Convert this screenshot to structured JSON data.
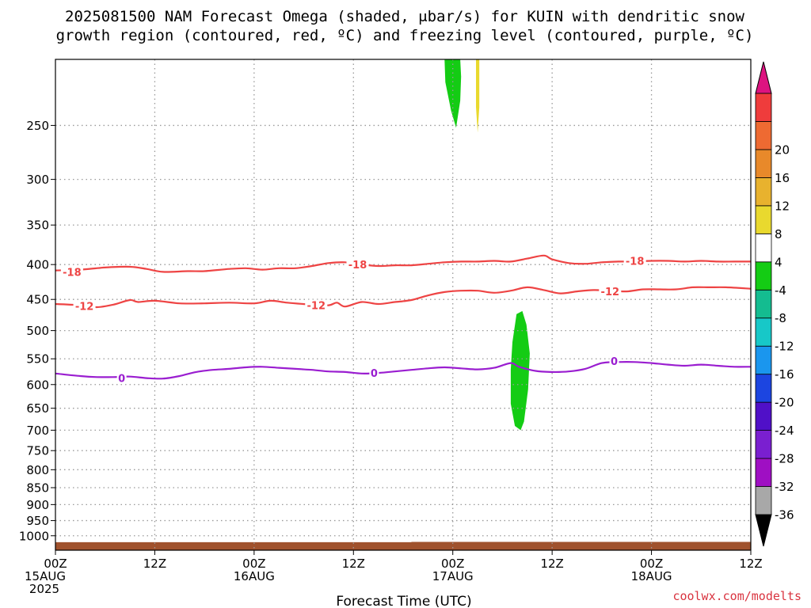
{
  "title": {
    "line1": "2025081500 NAM Forecast Omega (shaded, μbar/s) for KUIN with dendritic snow",
    "line2": "growth region (contoured, red, ºC) and freezing level (contoured, purple, ºC)"
  },
  "xlabel": "Forecast Time (UTC)",
  "credit": "coolwx.com/modelts",
  "chart_data": {
    "type": "time-height contour",
    "x_unit": "forecast hours from 2025081500",
    "xlim": [
      0,
      84
    ],
    "y_scale": "log-pressure, inverted",
    "ylim": [
      1050,
      200
    ],
    "y_ticks": [
      250,
      300,
      350,
      400,
      450,
      500,
      550,
      600,
      650,
      700,
      750,
      800,
      850,
      900,
      950,
      1000
    ],
    "x_ticks": [
      {
        "hour": 0,
        "line1": "00Z",
        "line2": "15AUG",
        "line3": "2025"
      },
      {
        "hour": 12,
        "line1": "12Z",
        "line2": "",
        "line3": ""
      },
      {
        "hour": 24,
        "line1": "00Z",
        "line2": "16AUG",
        "line3": ""
      },
      {
        "hour": 36,
        "line1": "12Z",
        "line2": "",
        "line3": ""
      },
      {
        "hour": 48,
        "line1": "00Z",
        "line2": "17AUG",
        "line3": ""
      },
      {
        "hour": 60,
        "line1": "12Z",
        "line2": "",
        "line3": ""
      },
      {
        "hour": 72,
        "line1": "00Z",
        "line2": "18AUG",
        "line3": ""
      },
      {
        "hour": 84,
        "line1": "12Z",
        "line2": "",
        "line3": ""
      }
    ],
    "ground_pressure": [
      [
        0,
        1022
      ],
      [
        43,
        1022
      ],
      [
        43,
        1021
      ],
      [
        84,
        1021
      ]
    ],
    "contours": [
      {
        "level": "-18",
        "color": "#ee4444",
        "label_positions": [
          [
            2,
            410
          ],
          [
            36.5,
            400
          ],
          [
            70,
            395
          ]
        ],
        "points": [
          [
            0,
            408
          ],
          [
            3,
            407
          ],
          [
            6,
            404
          ],
          [
            9,
            403
          ],
          [
            11,
            406
          ],
          [
            13,
            410
          ],
          [
            16,
            409
          ],
          [
            18,
            409
          ],
          [
            21,
            406
          ],
          [
            23,
            405
          ],
          [
            25,
            407
          ],
          [
            27,
            405
          ],
          [
            29,
            405
          ],
          [
            31,
            402
          ],
          [
            33,
            398
          ],
          [
            35,
            397
          ],
          [
            37,
            400
          ],
          [
            39,
            402
          ],
          [
            41,
            401
          ],
          [
            43,
            401
          ],
          [
            45,
            399
          ],
          [
            47,
            397
          ],
          [
            49,
            396
          ],
          [
            51,
            396
          ],
          [
            53,
            395
          ],
          [
            55,
            396
          ],
          [
            57,
            392
          ],
          [
            59,
            388
          ],
          [
            60,
            393
          ],
          [
            62,
            398
          ],
          [
            64,
            399
          ],
          [
            66,
            397
          ],
          [
            68,
            396
          ],
          [
            70,
            396
          ],
          [
            72,
            395
          ],
          [
            74,
            395
          ],
          [
            76,
            396
          ],
          [
            78,
            395
          ],
          [
            80,
            396
          ],
          [
            82,
            396
          ],
          [
            84,
            396
          ]
        ]
      },
      {
        "level": "-12",
        "color": "#ee4444",
        "label_positions": [
          [
            3.5,
            460
          ],
          [
            31.5,
            459
          ],
          [
            67,
            438
          ]
        ],
        "points": [
          [
            0,
            457
          ],
          [
            3,
            459
          ],
          [
            5,
            462
          ],
          [
            7,
            458
          ],
          [
            9,
            451
          ],
          [
            10,
            454
          ],
          [
            12,
            452
          ],
          [
            15,
            456
          ],
          [
            18,
            456
          ],
          [
            21,
            455
          ],
          [
            24,
            456
          ],
          [
            26,
            452
          ],
          [
            28,
            455
          ],
          [
            31,
            458
          ],
          [
            33,
            459
          ],
          [
            34,
            455
          ],
          [
            35,
            461
          ],
          [
            37,
            454
          ],
          [
            39,
            457
          ],
          [
            41,
            454
          ],
          [
            43,
            451
          ],
          [
            45,
            444
          ],
          [
            47,
            439
          ],
          [
            49,
            437
          ],
          [
            51,
            437
          ],
          [
            53,
            440
          ],
          [
            55,
            437
          ],
          [
            57,
            432
          ],
          [
            59,
            436
          ],
          [
            61,
            441
          ],
          [
            63,
            438
          ],
          [
            65,
            436
          ],
          [
            67,
            437
          ],
          [
            69,
            438
          ],
          [
            71,
            435
          ],
          [
            73,
            435
          ],
          [
            75,
            435
          ],
          [
            77,
            432
          ],
          [
            79,
            432
          ],
          [
            81,
            432
          ],
          [
            84,
            434
          ]
        ]
      },
      {
        "level": "0",
        "color": "#9a1ed0",
        "label_positions": [
          [
            8,
            587
          ],
          [
            38.5,
            577
          ],
          [
            67.5,
            554
          ]
        ],
        "points": [
          [
            0,
            578
          ],
          [
            3,
            583
          ],
          [
            5,
            585
          ],
          [
            7,
            585
          ],
          [
            9,
            584
          ],
          [
            11,
            587
          ],
          [
            13,
            588
          ],
          [
            15,
            583
          ],
          [
            17,
            575
          ],
          [
            19,
            571
          ],
          [
            21,
            569
          ],
          [
            23,
            566
          ],
          [
            25,
            565
          ],
          [
            27,
            567
          ],
          [
            29,
            569
          ],
          [
            31,
            571
          ],
          [
            33,
            574
          ],
          [
            35,
            575
          ],
          [
            37,
            578
          ],
          [
            39,
            577
          ],
          [
            41,
            574
          ],
          [
            43,
            571
          ],
          [
            45,
            568
          ],
          [
            47,
            566
          ],
          [
            49,
            568
          ],
          [
            51,
            570
          ],
          [
            53,
            567
          ],
          [
            55,
            558
          ],
          [
            56,
            565
          ],
          [
            58,
            573
          ],
          [
            60,
            575
          ],
          [
            62,
            574
          ],
          [
            64,
            569
          ],
          [
            66,
            558
          ],
          [
            68,
            556
          ],
          [
            70,
            556
          ],
          [
            72,
            558
          ],
          [
            74,
            561
          ],
          [
            76,
            563
          ],
          [
            78,
            561
          ],
          [
            80,
            563
          ],
          [
            82,
            565
          ],
          [
            84,
            565
          ]
        ]
      }
    ],
    "shaded_regions": [
      {
        "fill": "#14cc14",
        "polygon": [
          [
            47.5,
            200
          ],
          [
            48.9,
            200
          ],
          [
            49,
            212
          ],
          [
            48.9,
            230
          ],
          [
            48.4,
            252
          ],
          [
            47.8,
            238
          ],
          [
            47.1,
            216
          ],
          [
            47,
            200
          ]
        ]
      },
      {
        "fill": "#e9d92e",
        "polygon": [
          [
            50.8,
            200
          ],
          [
            51.2,
            200
          ],
          [
            51.2,
            235
          ],
          [
            51,
            256
          ],
          [
            50.8,
            235
          ]
        ]
      },
      {
        "fill": "#14cc14",
        "polygon": [
          [
            55.7,
            473
          ],
          [
            56.4,
            468
          ],
          [
            56.9,
            490
          ],
          [
            57.3,
            540
          ],
          [
            57.1,
            610
          ],
          [
            56.6,
            680
          ],
          [
            56.2,
            700
          ],
          [
            55.5,
            690
          ],
          [
            55,
            640
          ],
          [
            55,
            570
          ],
          [
            55.2,
            520
          ]
        ]
      }
    ]
  },
  "colorbar": {
    "colors": [
      "#a8a8a8",
      "#9f0fc3",
      "#7a1fd0",
      "#5010c8",
      "#1c45e0",
      "#1a96ee",
      "#17c8c8",
      "#14bc90",
      "#14cc14",
      "#ffffff",
      "#e9d92e",
      "#e8b22e",
      "#e8892a",
      "#ee6a32",
      "#ef3c3c"
    ],
    "top_arrow_color": "#dd1380",
    "bottom_arrow_color": "#000000",
    "labels": [
      "-36",
      "-32",
      "-28",
      "-24",
      "-20",
      "-16",
      "-12",
      "-8",
      "-4",
      "4",
      "8",
      "12",
      "16",
      "20"
    ]
  }
}
